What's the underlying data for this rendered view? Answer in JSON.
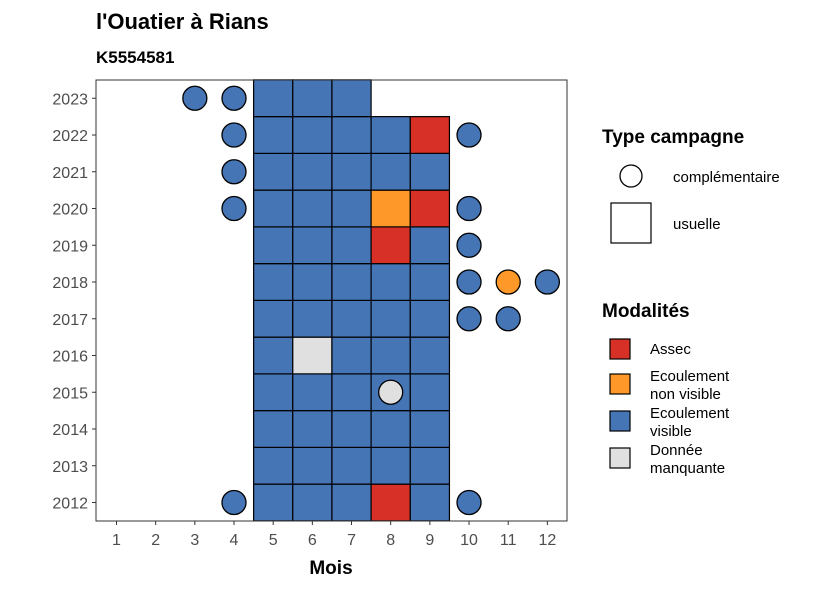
{
  "title": "l'Ouatier à Rians",
  "subtitle": "K5554581",
  "chart_data": {
    "type": "heatmap",
    "xlabel": "Mois",
    "x_ticks": [
      1,
      2,
      3,
      4,
      5,
      6,
      7,
      8,
      9,
      10,
      11,
      12
    ],
    "y_ticks": [
      2012,
      2013,
      2014,
      2015,
      2016,
      2017,
      2018,
      2019,
      2020,
      2021,
      2022,
      2023
    ],
    "colors": {
      "assec": "#d73027",
      "ecoulement_non_visible": "#fe9929",
      "ecoulement_visible": "#4575b4",
      "donnee_manquante": "#e0e0e0"
    },
    "usuelle": [
      {
        "year": 2012,
        "months": [
          5,
          6,
          7,
          8,
          9
        ],
        "values": [
          "ecoulement_visible",
          "ecoulement_visible",
          "ecoulement_visible",
          "assec",
          "ecoulement_visible"
        ]
      },
      {
        "year": 2013,
        "months": [
          5,
          6,
          7,
          8,
          9
        ],
        "values": [
          "ecoulement_visible",
          "ecoulement_visible",
          "ecoulement_visible",
          "ecoulement_visible",
          "ecoulement_visible"
        ]
      },
      {
        "year": 2014,
        "months": [
          5,
          6,
          7,
          8,
          9
        ],
        "values": [
          "ecoulement_visible",
          "ecoulement_visible",
          "ecoulement_visible",
          "ecoulement_visible",
          "ecoulement_visible"
        ]
      },
      {
        "year": 2015,
        "months": [
          5,
          6,
          7,
          8,
          9
        ],
        "values": [
          "ecoulement_visible",
          "ecoulement_visible",
          "ecoulement_visible",
          "ecoulement_visible",
          "ecoulement_visible"
        ]
      },
      {
        "year": 2016,
        "months": [
          5,
          6,
          7,
          8,
          9
        ],
        "values": [
          "ecoulement_visible",
          "donnee_manquante",
          "ecoulement_visible",
          "ecoulement_visible",
          "ecoulement_visible"
        ]
      },
      {
        "year": 2017,
        "months": [
          5,
          6,
          7,
          8,
          9
        ],
        "values": [
          "ecoulement_visible",
          "ecoulement_visible",
          "ecoulement_visible",
          "ecoulement_visible",
          "ecoulement_visible"
        ]
      },
      {
        "year": 2018,
        "months": [
          5,
          6,
          7,
          8,
          9
        ],
        "values": [
          "ecoulement_visible",
          "ecoulement_visible",
          "ecoulement_visible",
          "ecoulement_visible",
          "ecoulement_visible"
        ]
      },
      {
        "year": 2019,
        "months": [
          5,
          6,
          7,
          8,
          9
        ],
        "values": [
          "ecoulement_visible",
          "ecoulement_visible",
          "ecoulement_visible",
          "assec",
          "ecoulement_visible"
        ]
      },
      {
        "year": 2020,
        "months": [
          5,
          6,
          7,
          8,
          9
        ],
        "values": [
          "ecoulement_visible",
          "ecoulement_visible",
          "ecoulement_visible",
          "ecoulement_non_visible",
          "assec"
        ]
      },
      {
        "year": 2021,
        "months": [
          5,
          6,
          7,
          8,
          9
        ],
        "values": [
          "ecoulement_visible",
          "ecoulement_visible",
          "ecoulement_visible",
          "ecoulement_visible",
          "ecoulement_visible"
        ]
      },
      {
        "year": 2022,
        "months": [
          5,
          6,
          7,
          8,
          9
        ],
        "values": [
          "ecoulement_visible",
          "ecoulement_visible",
          "ecoulement_visible",
          "ecoulement_visible",
          "assec"
        ]
      },
      {
        "year": 2023,
        "months": [
          5,
          6,
          7
        ],
        "values": [
          "ecoulement_visible",
          "ecoulement_visible",
          "ecoulement_visible"
        ]
      }
    ],
    "complementaire": [
      {
        "year": 2023,
        "month": 3,
        "value": "ecoulement_visible"
      },
      {
        "year": 2023,
        "month": 4,
        "value": "ecoulement_visible"
      },
      {
        "year": 2022,
        "month": 4,
        "value": "ecoulement_visible"
      },
      {
        "year": 2022,
        "month": 10,
        "value": "ecoulement_visible"
      },
      {
        "year": 2021,
        "month": 4,
        "value": "ecoulement_visible"
      },
      {
        "year": 2020,
        "month": 4,
        "value": "ecoulement_visible"
      },
      {
        "year": 2020,
        "month": 10,
        "value": "ecoulement_visible"
      },
      {
        "year": 2019,
        "month": 10,
        "value": "ecoulement_visible"
      },
      {
        "year": 2018,
        "month": 10,
        "value": "ecoulement_visible"
      },
      {
        "year": 2018,
        "month": 11,
        "value": "ecoulement_non_visible"
      },
      {
        "year": 2018,
        "month": 12,
        "value": "ecoulement_visible"
      },
      {
        "year": 2017,
        "month": 10,
        "value": "ecoulement_visible"
      },
      {
        "year": 2017,
        "month": 11,
        "value": "ecoulement_visible"
      },
      {
        "year": 2015,
        "month": 8,
        "value": "donnee_manquante"
      },
      {
        "year": 2012,
        "month": 4,
        "value": "ecoulement_visible"
      },
      {
        "year": 2012,
        "month": 10,
        "value": "ecoulement_visible"
      }
    ],
    "legend_type_campagne": {
      "title": "Type campagne",
      "items": [
        {
          "key": "complementaire",
          "label": "complémentaire",
          "shape": "circle"
        },
        {
          "key": "usuelle",
          "label": "usuelle",
          "shape": "square"
        }
      ]
    },
    "legend_modalites": {
      "title": "Modalités",
      "items": [
        {
          "key": "assec",
          "lines": [
            "Assec"
          ]
        },
        {
          "key": "ecoulement_non_visible",
          "lines": [
            "Ecoulement",
            "non visible"
          ]
        },
        {
          "key": "ecoulement_visible",
          "lines": [
            "Ecoulement",
            "visible"
          ]
        },
        {
          "key": "donnee_manquante",
          "lines": [
            "Donnée",
            "manquante"
          ]
        }
      ]
    },
    "legend_position": "right",
    "grid": false
  }
}
